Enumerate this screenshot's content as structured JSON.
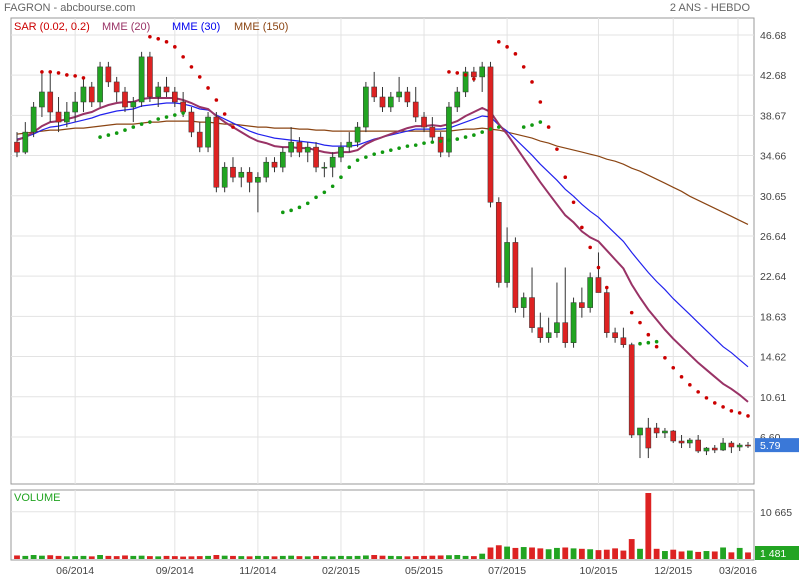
{
  "header": {
    "title": "FAGRON - abcbourse.com",
    "period": "2 ANS - HEBDO"
  },
  "legend": [
    {
      "label": "SAR (0.02, 0.2)",
      "color": "#cc0000"
    },
    {
      "label": "MME (20)",
      "color": "#993366"
    },
    {
      "label": "MME (30)",
      "color": "#0000ee"
    },
    {
      "label": "MME (150)",
      "color": "#8b4513"
    }
  ],
  "volume_label": "VOLUME",
  "chart_data": {
    "type": "candlestick",
    "price_axis": {
      "ticks": [
        6.6,
        10.61,
        14.62,
        18.63,
        22.64,
        26.64,
        30.65,
        34.66,
        38.67,
        42.68,
        46.68
      ],
      "tick_labels": [
        "6.60",
        "10.61",
        "14.62",
        "18.63",
        "22.64",
        "26.64",
        "30.65",
        "34.66",
        "38.67",
        "42.68",
        "46.68"
      ],
      "range": [
        2.6,
        48.68
      ],
      "last_value": 5.79,
      "last_label": "5.79"
    },
    "volume_axis": {
      "ticks": [
        10665
      ],
      "tick_labels": [
        "10 665"
      ],
      "last_value": 1481,
      "last_label": "1 481",
      "max": 14900
    },
    "x_labels": [
      "06/2014",
      "09/2014",
      "11/2014",
      "02/2015",
      "05/2015",
      "07/2015",
      "10/2015",
      "12/2015",
      "03/2016"
    ],
    "colors": {
      "up": "#22a422",
      "down": "#dd2222",
      "sar": "#cc0000",
      "sar_below": "#119911",
      "mme20": "#993366",
      "mme30": "#2222ee",
      "mme150": "#8b4513",
      "volume_label": "#22a422",
      "last_badge": "#3a78d8"
    },
    "candles": [
      [
        36.0,
        37.0,
        34.5,
        35.0
      ],
      [
        35.0,
        38.0,
        34.8,
        37.0
      ],
      [
        37.0,
        40.0,
        36.5,
        39.5
      ],
      [
        39.5,
        43.0,
        38.5,
        41.0
      ],
      [
        41.0,
        43.0,
        38.0,
        39.0
      ],
      [
        39.0,
        40.5,
        37.0,
        38.0
      ],
      [
        38.0,
        40.0,
        37.5,
        39.0
      ],
      [
        39.0,
        41.0,
        38.0,
        40.0
      ],
      [
        40.0,
        42.5,
        39.0,
        41.5
      ],
      [
        41.5,
        42.0,
        39.5,
        40.0
      ],
      [
        40.0,
        44.0,
        39.5,
        43.5
      ],
      [
        43.5,
        44.0,
        41.5,
        42.0
      ],
      [
        42.0,
        42.5,
        40.0,
        41.0
      ],
      [
        41.0,
        41.5,
        39.0,
        39.5
      ],
      [
        39.5,
        40.5,
        38.0,
        40.0
      ],
      [
        40.0,
        45.0,
        39.5,
        44.5
      ],
      [
        44.5,
        45.0,
        40.0,
        40.5
      ],
      [
        40.5,
        42.0,
        39.5,
        41.5
      ],
      [
        41.5,
        42.5,
        40.5,
        41.0
      ],
      [
        41.0,
        41.5,
        39.5,
        40.0
      ],
      [
        40.0,
        41.0,
        38.5,
        39.0
      ],
      [
        39.0,
        39.5,
        36.5,
        37.0
      ],
      [
        37.0,
        38.0,
        35.0,
        35.5
      ],
      [
        35.5,
        39.0,
        35.0,
        38.5
      ],
      [
        38.5,
        39.0,
        31.0,
        31.5
      ],
      [
        31.5,
        34.0,
        31.0,
        33.5
      ],
      [
        33.5,
        34.5,
        32.0,
        32.5
      ],
      [
        32.5,
        33.5,
        31.5,
        33.0
      ],
      [
        33.0,
        33.5,
        31.0,
        32.0
      ],
      [
        32.0,
        33.0,
        29.0,
        32.5
      ],
      [
        32.5,
        34.5,
        32.0,
        34.0
      ],
      [
        34.0,
        34.5,
        33.0,
        33.5
      ],
      [
        33.5,
        35.5,
        33.0,
        35.0
      ],
      [
        35.0,
        37.5,
        34.5,
        36.0
      ],
      [
        36.0,
        36.5,
        34.5,
        35.0
      ],
      [
        35.0,
        36.0,
        34.0,
        35.5
      ],
      [
        35.5,
        36.0,
        33.0,
        33.5
      ],
      [
        33.5,
        34.0,
        32.5,
        33.5
      ],
      [
        33.5,
        35.0,
        32.5,
        34.5
      ],
      [
        34.5,
        36.0,
        34.0,
        35.5
      ],
      [
        35.5,
        37.0,
        35.0,
        36.0
      ],
      [
        36.0,
        38.0,
        35.5,
        37.5
      ],
      [
        37.5,
        42.0,
        37.0,
        41.5
      ],
      [
        41.5,
        43.0,
        40.0,
        40.5
      ],
      [
        40.5,
        41.5,
        39.0,
        39.5
      ],
      [
        39.5,
        41.0,
        39.0,
        40.5
      ],
      [
        40.5,
        42.5,
        40.0,
        41.0
      ],
      [
        41.0,
        41.5,
        39.5,
        40.0
      ],
      [
        40.0,
        41.5,
        38.0,
        38.5
      ],
      [
        38.5,
        39.0,
        37.0,
        37.5
      ],
      [
        37.5,
        38.5,
        36.0,
        36.5
      ],
      [
        36.5,
        37.0,
        34.5,
        35.0
      ],
      [
        35.0,
        40.0,
        34.5,
        39.5
      ],
      [
        39.5,
        41.5,
        39.0,
        41.0
      ],
      [
        41.0,
        43.5,
        40.5,
        43.0
      ],
      [
        43.0,
        43.5,
        42.0,
        42.5
      ],
      [
        42.5,
        44.0,
        41.0,
        43.5
      ],
      [
        43.5,
        44.0,
        29.5,
        30.0
      ],
      [
        30.0,
        30.5,
        21.5,
        22.0
      ],
      [
        22.0,
        27.5,
        21.5,
        26.0
      ],
      [
        26.0,
        26.5,
        19.0,
        19.5
      ],
      [
        19.5,
        21.0,
        18.5,
        20.5
      ],
      [
        20.5,
        23.5,
        17.0,
        17.5
      ],
      [
        17.5,
        19.0,
        16.0,
        16.5
      ],
      [
        16.5,
        18.5,
        16.0,
        17.0
      ],
      [
        17.0,
        22.0,
        16.5,
        18.0
      ],
      [
        18.0,
        23.5,
        15.5,
        16.0
      ],
      [
        16.0,
        20.5,
        15.5,
        20.0
      ],
      [
        20.0,
        21.5,
        18.5,
        19.5
      ],
      [
        19.5,
        23.0,
        19.0,
        22.5
      ],
      [
        22.5,
        25.0,
        21.0,
        21.0
      ],
      [
        21.0,
        21.5,
        16.5,
        17.0
      ],
      [
        17.0,
        17.5,
        16.0,
        16.5
      ],
      [
        16.5,
        17.5,
        15.5,
        15.8
      ],
      [
        15.8,
        16.0,
        6.5,
        6.8
      ],
      [
        6.8,
        7.5,
        4.5,
        7.5
      ],
      [
        7.5,
        8.5,
        4.5,
        5.5
      ],
      [
        7.5,
        8.0,
        6.5,
        7.0
      ],
      [
        7.0,
        7.5,
        6.5,
        7.2
      ],
      [
        7.2,
        7.3,
        6.0,
        6.2
      ],
      [
        6.2,
        6.8,
        5.5,
        6.0
      ],
      [
        6.0,
        6.5,
        5.5,
        6.3
      ],
      [
        6.3,
        6.8,
        5.0,
        5.2
      ],
      [
        5.2,
        5.6,
        4.8,
        5.5
      ],
      [
        5.5,
        5.8,
        5.0,
        5.3
      ],
      [
        5.3,
        6.5,
        5.2,
        6.0
      ],
      [
        6.0,
        6.2,
        5.0,
        5.6
      ],
      [
        5.6,
        6.0,
        5.2,
        5.8
      ],
      [
        5.8,
        6.1,
        5.5,
        5.79
      ]
    ],
    "volumes": [
      800,
      700,
      900,
      750,
      850,
      700,
      600,
      650,
      700,
      600,
      900,
      700,
      650,
      800,
      700,
      750,
      650,
      600,
      700,
      650,
      550,
      600,
      650,
      700,
      900,
      750,
      700,
      650,
      600,
      700,
      650,
      600,
      700,
      750,
      650,
      600,
      700,
      650,
      600,
      700,
      650,
      700,
      800,
      900,
      750,
      700,
      650,
      600,
      650,
      700,
      750,
      800,
      850,
      900,
      700,
      650,
      1200,
      2600,
      3100,
      2800,
      2500,
      2700,
      2600,
      2400,
      2200,
      2500,
      2600,
      2400,
      2300,
      2200,
      2000,
      2100,
      2400,
      1900,
      4500,
      2300,
      14900,
      2300,
      1800,
      2100,
      1700,
      1900,
      1600,
      1800,
      1700,
      2600,
      1500,
      2500,
      1481
    ],
    "sar_above": [
      [
        3,
        43
      ],
      [
        4,
        43
      ],
      [
        5,
        42.9
      ],
      [
        6,
        42.7
      ],
      [
        7,
        42.6
      ],
      [
        8,
        42.4
      ],
      [
        16,
        46.5
      ],
      [
        17,
        46.3
      ],
      [
        18,
        46
      ],
      [
        19,
        45.5
      ],
      [
        20,
        44.5
      ],
      [
        21,
        43.5
      ],
      [
        22,
        42.5
      ],
      [
        23,
        41.4
      ],
      [
        24,
        40.2
      ],
      [
        25,
        38.8
      ],
      [
        26,
        37.5
      ],
      [
        52,
        43
      ],
      [
        53,
        42.9
      ],
      [
        54,
        42.7
      ],
      [
        55,
        42.3
      ],
      [
        58,
        46
      ],
      [
        59,
        45.5
      ],
      [
        60,
        44.8
      ],
      [
        61,
        43.5
      ],
      [
        62,
        42
      ],
      [
        63,
        40
      ],
      [
        64,
        37.5
      ],
      [
        65,
        35.3
      ],
      [
        66,
        32.5
      ],
      [
        67,
        30
      ],
      [
        68,
        27.5
      ],
      [
        69,
        25.5
      ],
      [
        70,
        23.5
      ],
      [
        71,
        21.5
      ],
      [
        74,
        19
      ],
      [
        75,
        18
      ],
      [
        76,
        16.8
      ],
      [
        77,
        15.6
      ],
      [
        78,
        14.5
      ],
      [
        79,
        13.5
      ],
      [
        80,
        12.6
      ],
      [
        81,
        11.8
      ],
      [
        82,
        11.1
      ],
      [
        83,
        10.5
      ],
      [
        84,
        10
      ],
      [
        85,
        9.6
      ],
      [
        86,
        9.2
      ],
      [
        87,
        9.0
      ],
      [
        88,
        8.7
      ]
    ],
    "sar_below": [
      [
        10,
        36.5
      ],
      [
        11,
        36.7
      ],
      [
        12,
        36.9
      ],
      [
        13,
        37.2
      ],
      [
        14,
        37.5
      ],
      [
        15,
        37.8
      ],
      [
        16,
        38
      ],
      [
        17,
        38.3
      ],
      [
        18,
        38.5
      ],
      [
        19,
        38.7
      ],
      [
        20,
        38.9
      ],
      [
        32,
        29
      ],
      [
        33,
        29.2
      ],
      [
        34,
        29.5
      ],
      [
        35,
        29.9
      ],
      [
        36,
        30.5
      ],
      [
        37,
        31
      ],
      [
        38,
        31.6
      ],
      [
        39,
        32.5
      ],
      [
        40,
        33.5
      ],
      [
        41,
        34.2
      ],
      [
        42,
        34.5
      ],
      [
        43,
        34.8
      ],
      [
        44,
        35
      ],
      [
        45,
        35.2
      ],
      [
        46,
        35.4
      ],
      [
        47,
        35.6
      ],
      [
        48,
        35.7
      ],
      [
        49,
        35.9
      ],
      [
        50,
        36
      ],
      [
        51,
        36.1
      ],
      [
        52,
        36.2
      ],
      [
        53,
        36.3
      ],
      [
        54,
        36.5
      ],
      [
        55,
        36.7
      ],
      [
        56,
        37
      ],
      [
        57,
        37.3
      ],
      [
        58,
        37.5
      ],
      [
        61,
        37.5
      ],
      [
        62,
        37.7
      ],
      [
        63,
        38
      ],
      [
        75,
        15.9
      ],
      [
        76,
        16.0
      ],
      [
        77,
        16.1
      ]
    ],
    "mme20": [
      36.2,
      36.5,
      37.0,
      37.6,
      38.0,
      38.1,
      38.3,
      38.5,
      38.8,
      39.0,
      39.4,
      39.7,
      39.9,
      40.0,
      40.0,
      40.3,
      40.4,
      40.4,
      40.4,
      40.4,
      40.2,
      39.9,
      39.5,
      39.3,
      38.6,
      38.0,
      37.5,
      37.0,
      36.5,
      36.1,
      35.9,
      35.6,
      35.5,
      35.5,
      35.4,
      35.4,
      35.2,
      35.0,
      34.9,
      35.0,
      35.0,
      35.2,
      35.8,
      36.2,
      36.5,
      36.8,
      37.1,
      37.4,
      37.6,
      37.6,
      37.7,
      37.6,
      37.8,
      38.1,
      38.6,
      39.0,
      39.4,
      39.0,
      37.8,
      36.8,
      35.6,
      34.4,
      33.2,
      32.0,
      30.9,
      29.8,
      28.7,
      28.0,
      27.1,
      26.5,
      26.1,
      25.2,
      24.3,
      23.4,
      21.8,
      20.5,
      19.3,
      18.3,
      17.3,
      16.4,
      15.6,
      14.8,
      14.0,
      13.3,
      12.6,
      11.9,
      11.4,
      10.8,
      10.1
    ],
    "mme30": [
      36.3,
      36.5,
      36.8,
      37.2,
      37.5,
      37.6,
      37.8,
      38.0,
      38.2,
      38.4,
      38.7,
      38.9,
      39.1,
      39.2,
      39.3,
      39.6,
      39.7,
      39.8,
      39.9,
      39.9,
      39.8,
      39.6,
      39.3,
      39.2,
      38.7,
      38.3,
      37.9,
      37.5,
      37.1,
      36.8,
      36.6,
      36.4,
      36.3,
      36.2,
      36.1,
      36.0,
      35.9,
      35.7,
      35.6,
      35.6,
      35.6,
      35.7,
      36.0,
      36.3,
      36.5,
      36.7,
      36.9,
      37.1,
      37.3,
      37.3,
      37.3,
      37.3,
      37.4,
      37.7,
      38.0,
      38.3,
      38.6,
      38.5,
      37.7,
      37.1,
      36.3,
      35.5,
      34.7,
      33.8,
      33.0,
      32.2,
      31.3,
      30.6,
      29.8,
      29.1,
      28.5,
      27.7,
      26.9,
      26.1,
      25.0,
      24.0,
      23.0,
      22.1,
      21.3,
      20.4,
      19.6,
      18.8,
      18.0,
      17.2,
      16.4,
      15.6,
      15.0,
      14.3,
      13.6
    ],
    "mme150": [
      36.8,
      36.9,
      37.0,
      37.1,
      37.2,
      37.2,
      37.3,
      37.4,
      37.4,
      37.5,
      37.6,
      37.7,
      37.8,
      37.8,
      37.8,
      37.9,
      38.0,
      38.0,
      38.1,
      38.1,
      38.1,
      38.1,
      38.0,
      38.0,
      37.9,
      37.8,
      37.8,
      37.7,
      37.6,
      37.5,
      37.5,
      37.4,
      37.4,
      37.4,
      37.3,
      37.3,
      37.2,
      37.2,
      37.1,
      37.1,
      37.1,
      37.1,
      37.1,
      37.1,
      37.1,
      37.1,
      37.1,
      37.1,
      37.1,
      37.1,
      37.1,
      37.1,
      37.1,
      37.2,
      37.3,
      37.3,
      37.4,
      37.3,
      37.2,
      37.0,
      36.8,
      36.6,
      36.4,
      36.1,
      35.9,
      35.6,
      35.4,
      35.2,
      35.0,
      34.8,
      34.6,
      34.3,
      34.1,
      33.8,
      33.4,
      33.1,
      32.7,
      32.3,
      31.9,
      31.5,
      31.1,
      30.6,
      30.2,
      29.8,
      29.4,
      29.0,
      28.6,
      28.2,
      27.8
    ]
  }
}
